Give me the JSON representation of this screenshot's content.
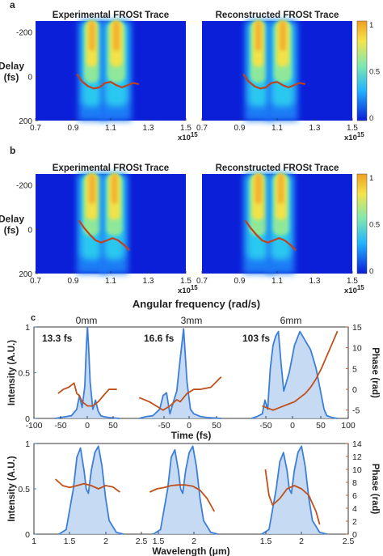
{
  "figure": {
    "panel_labels": [
      "a",
      "b",
      "c"
    ],
    "shared_xlabel": "Angular frequency (rad/s)"
  },
  "chart_data": [
    {
      "type": "heatmap",
      "panel": "a",
      "ylabel": "Delay\n(fs)",
      "xlabel": "",
      "x_ticks": [
        "0.7",
        "0.9",
        "1.1",
        "1.3",
        "1.5"
      ],
      "x_multiplier": "x10",
      "x_multiplier_exp": "15",
      "y_ticks": [
        "-200",
        "0",
        "200"
      ],
      "xlim": [
        0.7,
        1.5
      ],
      "ylim": [
        -250,
        200
      ],
      "colorbar": {
        "ticks": [
          "1",
          "0.5",
          "0"
        ],
        "range": [
          0,
          1
        ],
        "colors": [
          "#0a1dd6",
          "#22b2ff",
          "#7de8b0",
          "#f4e44a",
          "#f0a020"
        ]
      },
      "subplots": [
        {
          "title": "Experimental FROSt Trace",
          "lobes": [
            {
              "center": 1.0,
              "width": 0.045
            },
            {
              "center": 1.13,
              "width": 0.05
            }
          ],
          "intensity_peak": 1.0,
          "faint_lines": [
            0.95,
            1.02,
            1.09
          ],
          "curve": {
            "x": [
              0.92,
              0.95,
              0.98,
              1.01,
              1.04,
              1.07,
              1.1,
              1.13,
              1.16,
              1.19,
              1.22,
              1.25
            ],
            "y": [
              -10,
              25,
              45,
              55,
              50,
              30,
              25,
              40,
              50,
              40,
              30,
              35
            ]
          }
        },
        {
          "title": "Reconstructed FROSt Trace",
          "lobes": [
            {
              "center": 1.0,
              "width": 0.045
            },
            {
              "center": 1.13,
              "width": 0.05
            }
          ],
          "intensity_peak": 1.0,
          "faint_lines": [],
          "curve": {
            "x": [
              0.92,
              0.95,
              0.98,
              1.01,
              1.04,
              1.07,
              1.1,
              1.13,
              1.16,
              1.19,
              1.22,
              1.25
            ],
            "y": [
              -10,
              25,
              45,
              55,
              50,
              30,
              25,
              40,
              50,
              40,
              30,
              35
            ]
          }
        }
      ]
    },
    {
      "type": "heatmap",
      "panel": "b",
      "ylabel": "Delay\n(fs)",
      "xlabel": "Angular frequency (rad/s)",
      "x_ticks": [
        "0.7",
        "0.9",
        "1.1",
        "1.3",
        "1.5"
      ],
      "x_multiplier": "x10",
      "x_multiplier_exp": "15",
      "y_ticks": [
        "-200",
        "0",
        "200"
      ],
      "xlim": [
        0.7,
        1.5
      ],
      "ylim": [
        -250,
        200
      ],
      "colorbar": {
        "ticks": [
          "1",
          "0.5",
          "0"
        ],
        "range": [
          0,
          1
        ],
        "colors": [
          "#0a1dd6",
          "#22b2ff",
          "#7de8b0",
          "#f4e44a",
          "#f0a020"
        ]
      },
      "subplots": [
        {
          "title": "Experimental FROSt Trace",
          "lobes": [
            {
              "center": 1.0,
              "width": 0.05
            },
            {
              "center": 1.12,
              "width": 0.045
            }
          ],
          "intensity_peak": 1.0,
          "faint_lines": [
            0.96,
            1.05
          ],
          "curve": {
            "x": [
              0.93,
              0.96,
              0.99,
              1.02,
              1.05,
              1.08,
              1.11,
              1.14,
              1.17,
              1.2
            ],
            "y": [
              -40,
              -5,
              25,
              50,
              60,
              50,
              40,
              50,
              70,
              95
            ]
          }
        },
        {
          "title": "Reconstructed FROSt Trace",
          "lobes": [
            {
              "center": 1.0,
              "width": 0.05
            },
            {
              "center": 1.12,
              "width": 0.045
            }
          ],
          "intensity_peak": 1.0,
          "faint_lines": [],
          "curve": {
            "x": [
              0.93,
              0.96,
              0.99,
              1.02,
              1.05,
              1.08,
              1.11,
              1.14,
              1.17,
              1.2
            ],
            "y": [
              -40,
              -5,
              25,
              50,
              60,
              50,
              40,
              50,
              70,
              95
            ]
          }
        }
      ]
    },
    {
      "type": "line",
      "panel": "c-time",
      "xlabel": "Time (fs)",
      "ylabel_left": "Intensity (A.U.)",
      "ylabel_right": "Phase (rad)",
      "x_ticks": [
        "-100",
        "-50",
        "0",
        "50",
        "-50",
        "0",
        "50",
        "-50",
        "0",
        "50",
        "100"
      ],
      "y_left_ticks": [
        "1",
        "0.5",
        "0"
      ],
      "y_right_ticks": [
        "15",
        "10",
        "5",
        "0",
        "-5"
      ],
      "ylim_left": [
        0,
        1
      ],
      "ylim_right": [
        -7,
        15
      ],
      "colors": {
        "intensity": "#3c7fd8",
        "fill": "#bcd4f2",
        "phase": "#c0501a"
      },
      "groups": [
        {
          "label": "0mm",
          "duration": "13.3 fs",
          "intensity": {
            "x": [
              -60,
              -40,
              -30,
              -20,
              -15,
              -10,
              -5,
              -2,
              0,
              2,
              5,
              10,
              15,
              20,
              25,
              30,
              40,
              60
            ],
            "y": [
              0,
              0.02,
              0.03,
              0.1,
              0.25,
              0.12,
              0.35,
              0.8,
              1.0,
              0.8,
              0.4,
              0.1,
              0.2,
              0.08,
              0.03,
              0.02,
              0.01,
              0
            ]
          },
          "phase": {
            "x": [
              -55,
              -45,
              -35,
              -25,
              -20,
              -15,
              -10,
              0,
              10,
              20,
              30,
              40,
              55
            ],
            "y": [
              -1,
              0,
              0.5,
              1.5,
              -1,
              -1.5,
              -3,
              -4,
              -4,
              -3,
              -1.5,
              0,
              0
            ]
          }
        },
        {
          "label": "3mm",
          "duration": "16.6 fs",
          "intensity": {
            "x": [
              -60,
              -50,
              -40,
              -30,
              -25,
              -20,
              -15,
              -10,
              -5,
              0,
              5,
              10,
              15,
              20,
              30,
              40,
              60
            ],
            "y": [
              0,
              0.02,
              0.03,
              0.1,
              0.25,
              0.28,
              0.05,
              0.18,
              0.3,
              0.65,
              0.98,
              0.4,
              0.1,
              0.05,
              0.02,
              0.01,
              0
            ]
          },
          "phase": {
            "x": [
              -60,
              -45,
              -35,
              -25,
              -15,
              -5,
              0,
              10,
              20,
              30,
              45,
              60
            ],
            "y": [
              -2,
              -3,
              -4,
              -5,
              -4,
              -2.5,
              -3,
              -1,
              0,
              0,
              0.5,
              3
            ]
          }
        },
        {
          "label": "6mm",
          "duration": "103 fs",
          "intensity": {
            "x": [
              -80,
              -70,
              -60,
              -55,
              -50,
              -45,
              -40,
              -35,
              -30,
              -25,
              -20,
              -10,
              0,
              10,
              20,
              30,
              40,
              50,
              55,
              60,
              70,
              80
            ],
            "y": [
              0,
              0.02,
              0.05,
              0.2,
              0.1,
              0.55,
              0.8,
              0.9,
              0.95,
              0.6,
              0.3,
              0.5,
              0.8,
              0.95,
              0.85,
              0.75,
              0.55,
              0.25,
              0.1,
              0.03,
              0.01,
              0
            ]
          },
          "phase": {
            "x": [
              -60,
              -50,
              -40,
              -30,
              -20,
              -10,
              0,
              10,
              20,
              30,
              40,
              50,
              60,
              70,
              80
            ],
            "y": [
              -4,
              -4.5,
              -5,
              -4.5,
              -4,
              -3.5,
              -3,
              -2,
              -1,
              0.5,
              2.5,
              5,
              8,
              11,
              14
            ]
          }
        }
      ]
    },
    {
      "type": "line",
      "panel": "c-wavelength",
      "xlabel": "Wavelength (μm)",
      "ylabel_left": "Intensity (A.U.)",
      "ylabel_right": "Phase (rad)",
      "x_ticks": [
        "1",
        "1.5",
        "2",
        "2.5",
        "1.5",
        "2",
        "1.5",
        "2",
        "2.5"
      ],
      "y_left_ticks": [
        "1",
        "0.5",
        "0"
      ],
      "y_right_ticks": [
        "14",
        "12",
        "10",
        "8",
        "6",
        "4",
        "2",
        "0"
      ],
      "ylim_left": [
        0,
        1
      ],
      "ylim_right": [
        0,
        14
      ],
      "colors": {
        "intensity": "#3c7fd8",
        "fill": "#bcd4f2",
        "phase": "#c0501a"
      },
      "groups": [
        {
          "intensity": {
            "x": [
              1.35,
              1.45,
              1.55,
              1.6,
              1.65,
              1.7,
              1.73,
              1.76,
              1.8,
              1.85,
              1.9,
              1.95,
              2.0,
              2.05,
              2.15,
              2.25
            ],
            "y": [
              0,
              0.05,
              0.5,
              0.85,
              0.95,
              0.7,
              0.5,
              0.45,
              0.7,
              0.9,
              0.97,
              0.75,
              0.4,
              0.15,
              0.02,
              0
            ]
          },
          "phase": {
            "x": [
              1.3,
              1.4,
              1.5,
              1.6,
              1.7,
              1.8,
              1.9,
              2.0,
              2.1,
              2.2
            ],
            "y": [
              8.5,
              7.5,
              7.2,
              7.5,
              7.8,
              7.5,
              7.0,
              7.5,
              7.3,
              6.5
            ]
          }
        },
        {
          "intensity": {
            "x": [
              1.35,
              1.45,
              1.55,
              1.6,
              1.65,
              1.7,
              1.73,
              1.76,
              1.8,
              1.85,
              1.9,
              1.95,
              2.0,
              2.05,
              2.15,
              2.25
            ],
            "y": [
              0,
              0.05,
              0.5,
              0.85,
              0.93,
              0.7,
              0.5,
              0.45,
              0.7,
              0.9,
              0.97,
              0.75,
              0.4,
              0.15,
              0.02,
              0
            ]
          },
          "phase": {
            "x": [
              1.3,
              1.4,
              1.5,
              1.6,
              1.7,
              1.8,
              1.9,
              2.0,
              2.1,
              2.2
            ],
            "y": [
              6.5,
              7.0,
              7.2,
              7.5,
              7.6,
              7.6,
              7.4,
              6.8,
              5.5,
              3.5
            ]
          }
        },
        {
          "intensity": {
            "x": [
              1.35,
              1.45,
              1.55,
              1.6,
              1.65,
              1.7,
              1.73,
              1.76,
              1.8,
              1.85,
              1.9,
              1.95,
              2.0,
              2.05,
              2.15,
              2.25
            ],
            "y": [
              0,
              0.05,
              0.5,
              0.8,
              0.9,
              0.7,
              0.5,
              0.45,
              0.7,
              0.9,
              0.97,
              0.75,
              0.4,
              0.15,
              0.02,
              0
            ]
          },
          "phase": {
            "x": [
              1.4,
              1.45,
              1.5,
              1.6,
              1.7,
              1.8,
              1.9,
              2.0,
              2.1,
              2.15
            ],
            "y": [
              10,
              6,
              4.5,
              5.5,
              7.0,
              7.5,
              7.0,
              6.0,
              3.5,
              1.5
            ]
          }
        }
      ]
    }
  ]
}
